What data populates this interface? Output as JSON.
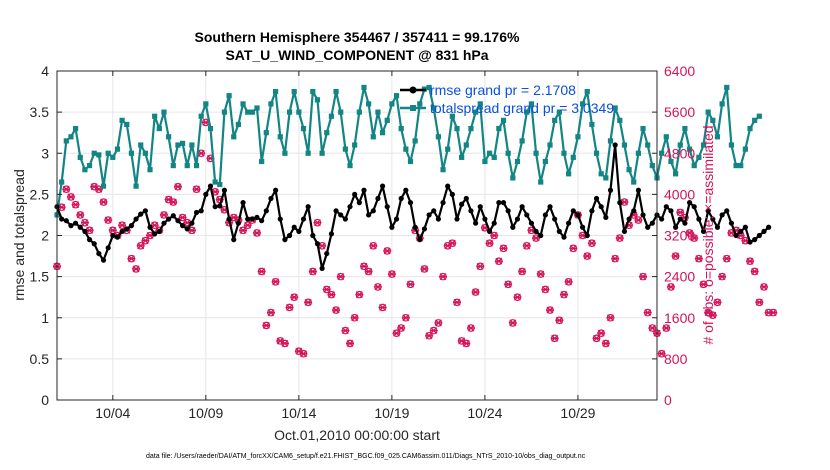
{
  "chart_data": {
    "type": "line",
    "title_line1": "Southern Hemisphere 354467 / 357411 = 99.176%",
    "title_line2": "SAT_U_WIND_COMPONENT @ 831 hPa",
    "xlabel": "Oct.01,2010 00:00:00 start",
    "ylabel_left": "rmse and totalspread",
    "ylabel_right": "# of obs: o=possible; ×=assimilated",
    "x_range_days": [
      1,
      33.25
    ],
    "x_ticks": [
      {
        "day": 4,
        "label": "10/04"
      },
      {
        "day": 9,
        "label": "10/09"
      },
      {
        "day": 14,
        "label": "10/14"
      },
      {
        "day": 19,
        "label": "10/19"
      },
      {
        "day": 24,
        "label": "10/24"
      },
      {
        "day": 29,
        "label": "10/29"
      }
    ],
    "ylim_left": [
      0,
      4
    ],
    "y_ticks_left": [
      "0",
      "0.5",
      "1",
      "1.5",
      "2",
      "2.5",
      "3",
      "3.5",
      "4"
    ],
    "ylim_right": [
      0,
      6400
    ],
    "y_ticks_right": [
      "0",
      "800",
      "1600",
      "2400",
      "3200",
      "4000",
      "4800",
      "5600",
      "6400"
    ],
    "grid": true,
    "legend_position": "top-right",
    "colors": {
      "rmse": "#000000",
      "totalspread": "#138584",
      "obs": "#d4145a",
      "legend_text": "#0a4fe0"
    },
    "series": [
      {
        "name": "rmse grand pr = 2.1708",
        "axis": "left",
        "start_day": 1,
        "step_day": 0.25,
        "values": [
          2.35,
          2.2,
          2.18,
          2.12,
          2.15,
          2.1,
          2.05,
          1.95,
          1.9,
          1.78,
          1.7,
          1.85,
          2.0,
          1.98,
          2.05,
          2.08,
          2.12,
          2.2,
          2.26,
          2.3,
          2.1,
          2.02,
          2.05,
          2.15,
          2.2,
          2.24,
          2.18,
          2.12,
          2.08,
          2.15,
          2.28,
          2.3,
          2.5,
          2.6,
          2.35,
          2.36,
          2.55,
          2.2,
          1.95,
          2.15,
          2.4,
          2.2,
          2.2,
          2.22,
          2.18,
          2.3,
          2.45,
          2.55,
          2.2,
          1.95,
          2.0,
          2.1,
          2.05,
          2.2,
          2.35,
          2.0,
          1.9,
          1.6,
          1.78,
          2.02,
          2.3,
          2.25,
          2.2,
          2.35,
          2.5,
          2.4,
          2.55,
          2.25,
          2.3,
          2.45,
          2.6,
          2.35,
          2.1,
          2.2,
          2.45,
          2.55,
          2.4,
          2.1,
          1.95,
          2.08,
          2.25,
          2.3,
          2.2,
          2.4,
          2.6,
          2.5,
          2.2,
          2.38,
          2.45,
          2.3,
          2.15,
          2.35,
          2.2,
          2.05,
          2.15,
          2.4,
          2.4,
          2.3,
          2.1,
          2.2,
          2.35,
          2.25,
          2.15,
          2.05,
          2.0,
          2.25,
          2.35,
          2.2,
          2.05,
          1.98,
          2.15,
          2.3,
          2.25,
          2.1,
          2.0,
          2.3,
          2.45,
          2.35,
          2.22,
          2.55,
          3.1,
          2.4,
          2.05,
          2.2,
          2.3,
          2.55,
          2.25,
          2.1,
          2.15,
          2.25,
          2.2,
          2.35,
          2.3,
          2.1,
          2.2,
          2.15,
          2.4,
          2.35,
          2.2,
          2.05,
          2.3,
          2.2,
          2.1,
          2.25,
          2.3,
          2.15,
          2.0,
          2.05,
          2.1,
          1.92,
          1.95,
          2.0,
          2.05,
          2.1
        ]
      },
      {
        "name": "totalspread grand pr = 3.0349",
        "axis": "left",
        "start_day": 1,
        "step_day": 0.25,
        "values": [
          2.25,
          2.65,
          3.15,
          3.2,
          3.3,
          2.95,
          2.8,
          2.85,
          3.0,
          2.98,
          2.6,
          3.0,
          2.95,
          3.05,
          3.4,
          3.35,
          3.0,
          2.6,
          3.1,
          3.0,
          2.8,
          3.45,
          3.3,
          3.5,
          3.2,
          2.85,
          3.1,
          3.12,
          2.85,
          3.1,
          2.85,
          3.45,
          3.6,
          3.3,
          2.65,
          2.62,
          3.5,
          3.7,
          3.2,
          3.35,
          3.6,
          3.5,
          3.5,
          3.55,
          2.9,
          3.25,
          3.6,
          3.75,
          3.2,
          3.0,
          3.5,
          3.75,
          3.5,
          3.3,
          3.0,
          3.75,
          3.65,
          3.0,
          3.25,
          3.45,
          3.75,
          3.5,
          3.05,
          2.85,
          3.1,
          3.5,
          3.8,
          3.6,
          3.2,
          3.5,
          3.25,
          3.4,
          3.6,
          3.7,
          3.3,
          3.05,
          2.9,
          3.15,
          3.6,
          3.78,
          3.8,
          3.55,
          3.2,
          2.8,
          3.05,
          3.45,
          3.3,
          2.95,
          3.1,
          3.3,
          3.5,
          3.6,
          2.9,
          3.0,
          2.95,
          3.3,
          3.4,
          3.0,
          2.7,
          2.9,
          3.15,
          3.5,
          3.6,
          3.0,
          2.65,
          2.9,
          3.1,
          3.4,
          3.5,
          3.0,
          2.75,
          2.95,
          3.2,
          3.6,
          3.75,
          3.35,
          3.0,
          2.75,
          2.7,
          3.15,
          3.55,
          3.4,
          3.1,
          2.8,
          2.65,
          3.0,
          3.3,
          3.1,
          2.85,
          2.7,
          3.0,
          3.2,
          2.9,
          2.75,
          3.1,
          3.3,
          3.05,
          2.85,
          2.95,
          3.1,
          3.5,
          3.4,
          3.2,
          3.6,
          3.8,
          3.1,
          2.85,
          2.85,
          3.05,
          3.3,
          3.4,
          3.45
        ]
      }
    ],
    "obs_count": {
      "axis": "right",
      "start_day": 1,
      "step_day": 0.25,
      "values": [
        2600,
        3750,
        4100,
        3950,
        3800,
        3600,
        3450,
        3300,
        4150,
        4100,
        3850,
        3500,
        3300,
        3200,
        3400,
        3300,
        2750,
        2550,
        3000,
        3100,
        3200,
        3400,
        3300,
        3600,
        3900,
        3850,
        4150,
        3550,
        3450,
        3300,
        4100,
        4800,
        5400,
        4700,
        4050,
        3900,
        3700,
        3450,
        3550,
        3500,
        3300,
        3400,
        3500,
        3250,
        2500,
        1450,
        1700,
        2300,
        1150,
        1100,
        1800,
        2000,
        950,
        900,
        1900,
        2500,
        3450,
        3000,
        2150,
        2050,
        1750,
        2400,
        1350,
        1100,
        1600,
        2050,
        2600,
        2500,
        3000,
        2200,
        1800,
        2900,
        2450,
        1300,
        1400,
        1600,
        2250,
        3300,
        3150,
        2550,
        1250,
        1350,
        1500,
        2400,
        3000,
        3050,
        1900,
        1150,
        1100,
        1400,
        2100,
        2600,
        3350,
        3050,
        3200,
        2700,
        2950,
        2250,
        1500,
        2000,
        2500,
        3000,
        3300,
        3150,
        2450,
        2150,
        1750,
        1200,
        1550,
        2050,
        2300,
        2950,
        3600,
        3200,
        2800,
        3050,
        1200,
        1300,
        1100,
        1600,
        2750,
        3150,
        3850,
        3400,
        3600,
        3500,
        2400,
        1700,
        1400,
        1300,
        900,
        1400,
        2200,
        2800,
        3650,
        3550,
        3250,
        3150,
        2750,
        2250,
        1700,
        1650,
        1900,
        2400,
        2750,
        3250,
        3300,
        3200,
        3100,
        2700,
        2500,
        1900,
        2200,
        1700,
        1700
      ]
    },
    "footer": "data file: /Users/raeder/DAI/ATM_forcXX/CAM6_setup/f.e21.FHIST_BGC.f09_025.CAM6assim.011/Diags_NTrS_2010-10/obs_diag_output.nc"
  }
}
